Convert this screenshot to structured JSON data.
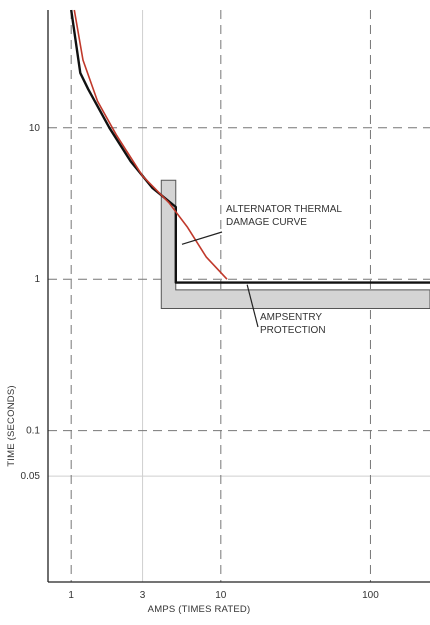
{
  "chart_data": {
    "type": "line",
    "title": "",
    "xlabel": "AMPS (TIMES RATED)",
    "ylabel": "TIME (SECONDS)",
    "x_scale": "log",
    "y_scale": "log",
    "xlim": [
      0.7,
      250
    ],
    "ylim": [
      0.01,
      60
    ],
    "grid": true,
    "x_ticks": [
      {
        "value": 1,
        "label": "1"
      },
      {
        "value": 3,
        "label": "3"
      },
      {
        "value": 10,
        "label": "10"
      },
      {
        "value": 100,
        "label": "100"
      }
    ],
    "y_ticks": [
      {
        "value": 10,
        "label": "10"
      },
      {
        "value": 1,
        "label": "1"
      },
      {
        "value": 0.1,
        "label": "0.1"
      },
      {
        "value": 0.05,
        "label": "0.05"
      }
    ],
    "series": [
      {
        "name": "ALTERNATOR THERMAL DAMAGE CURVE",
        "color": "#c0392b",
        "points": [
          [
            1.05,
            60
          ],
          [
            1.2,
            28
          ],
          [
            1.5,
            15
          ],
          [
            2.0,
            9
          ],
          [
            3.0,
            4.8
          ],
          [
            4.5,
            3.2
          ],
          [
            6.0,
            2.2
          ],
          [
            8.0,
            1.4
          ],
          [
            11.0,
            1.0
          ]
        ]
      },
      {
        "name": "AMPSENTRY PROTECTION",
        "color": "#111111",
        "points": [
          [
            1.0,
            60
          ],
          [
            1.15,
            23
          ],
          [
            1.3,
            18
          ],
          [
            1.8,
            10
          ],
          [
            2.5,
            6
          ],
          [
            3.5,
            4
          ],
          [
            5.0,
            3
          ],
          [
            5.0,
            0.95
          ],
          [
            250,
            0.95
          ]
        ]
      }
    ],
    "band": {
      "name": "AMPSENTRY PROTECTION",
      "fill": "#d4d4d4",
      "x_start": 4.0,
      "x_mid": 5.0,
      "y_top": 4.5,
      "y_inner": 0.85,
      "y_bottom": 0.64
    },
    "annotations": [
      {
        "lines": [
          "ALTERNATOR THERMAL",
          "DAMAGE CURVE"
        ],
        "target": [
          5.5,
          1.7
        ],
        "anchor": "upper-right"
      },
      {
        "lines": [
          "AMPSENTRY",
          "PROTECTION"
        ],
        "target": [
          15,
          0.92
        ],
        "anchor": "right"
      }
    ]
  }
}
